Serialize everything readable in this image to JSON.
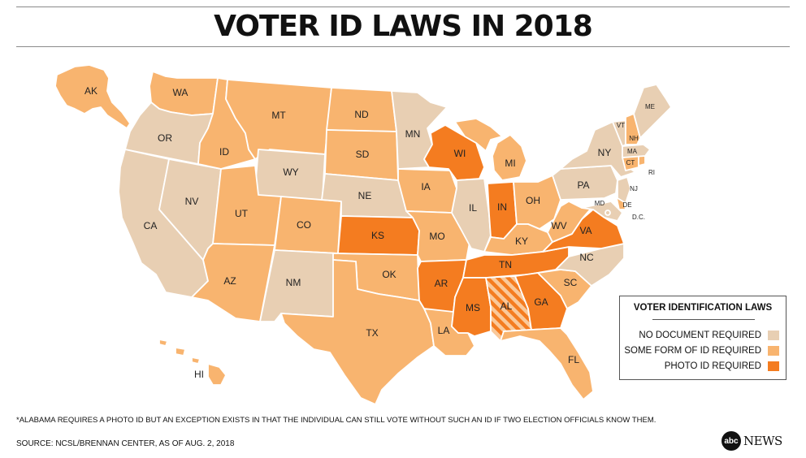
{
  "title": "VOTER ID LAWS IN 2018",
  "colors": {
    "none": "#e8cfb3",
    "some": "#f8b46f",
    "photo": "#f47c20",
    "stripe_base": "#fac99a"
  },
  "categories": {
    "none": "NO DOCUMENT REQUIRED",
    "some": "SOME FORM OF ID REQUIRED",
    "photo": "PHOTO ID REQUIRED"
  },
  "legend": {
    "title": "VOTER IDENTIFICATION LAWS",
    "items": [
      {
        "label": "NO DOCUMENT REQUIRED",
        "category": "none"
      },
      {
        "label": "SOME FORM OF ID REQUIRED",
        "category": "some"
      },
      {
        "label": "PHOTO ID REQUIRED",
        "category": "photo"
      }
    ]
  },
  "states": [
    {
      "abbr": "AK",
      "category": "some"
    },
    {
      "abbr": "HI",
      "category": "some"
    },
    {
      "abbr": "WA",
      "category": "some"
    },
    {
      "abbr": "OR",
      "category": "none"
    },
    {
      "abbr": "CA",
      "category": "none"
    },
    {
      "abbr": "NV",
      "category": "none"
    },
    {
      "abbr": "ID",
      "category": "some"
    },
    {
      "abbr": "MT",
      "category": "some"
    },
    {
      "abbr": "WY",
      "category": "none"
    },
    {
      "abbr": "UT",
      "category": "some"
    },
    {
      "abbr": "AZ",
      "category": "some"
    },
    {
      "abbr": "CO",
      "category": "some"
    },
    {
      "abbr": "NM",
      "category": "none"
    },
    {
      "abbr": "ND",
      "category": "some"
    },
    {
      "abbr": "SD",
      "category": "some"
    },
    {
      "abbr": "NE",
      "category": "none"
    },
    {
      "abbr": "KS",
      "category": "photo"
    },
    {
      "abbr": "OK",
      "category": "some"
    },
    {
      "abbr": "TX",
      "category": "some"
    },
    {
      "abbr": "MN",
      "category": "none"
    },
    {
      "abbr": "IA",
      "category": "some"
    },
    {
      "abbr": "MO",
      "category": "some"
    },
    {
      "abbr": "AR",
      "category": "photo"
    },
    {
      "abbr": "LA",
      "category": "some"
    },
    {
      "abbr": "WI",
      "category": "photo"
    },
    {
      "abbr": "IL",
      "category": "none"
    },
    {
      "abbr": "MI",
      "category": "some"
    },
    {
      "abbr": "IN",
      "category": "photo"
    },
    {
      "abbr": "OH",
      "category": "some"
    },
    {
      "abbr": "KY",
      "category": "some"
    },
    {
      "abbr": "TN",
      "category": "photo"
    },
    {
      "abbr": "MS",
      "category": "photo"
    },
    {
      "abbr": "AL",
      "category": "photo",
      "note": "*"
    },
    {
      "abbr": "GA",
      "category": "photo"
    },
    {
      "abbr": "FL",
      "category": "some"
    },
    {
      "abbr": "SC",
      "category": "some"
    },
    {
      "abbr": "NC",
      "category": "none"
    },
    {
      "abbr": "VA",
      "category": "photo"
    },
    {
      "abbr": "WV",
      "category": "some"
    },
    {
      "abbr": "PA",
      "category": "none"
    },
    {
      "abbr": "NY",
      "category": "none"
    },
    {
      "abbr": "VT",
      "category": "none"
    },
    {
      "abbr": "NH",
      "category": "some"
    },
    {
      "abbr": "ME",
      "category": "none"
    },
    {
      "abbr": "MA",
      "category": "none"
    },
    {
      "abbr": "CT",
      "category": "some"
    },
    {
      "abbr": "RI",
      "category": "some"
    },
    {
      "abbr": "NJ",
      "category": "none"
    },
    {
      "abbr": "DE",
      "category": "some"
    },
    {
      "abbr": "MD",
      "category": "none"
    },
    {
      "abbr": "D.C.",
      "category": "none"
    }
  ],
  "footnote": "*ALABAMA REQUIRES A PHOTO ID BUT AN EXCEPTION EXISTS IN THAT THE INDIVIDUAL CAN STILL VOTE WITHOUT SUCH AN ID IF TWO ELECTION OFFICIALS KNOW THEM.",
  "source": "SOURCE: NCSL/BRENNAN CENTER, AS OF AUG. 2, 2018",
  "logo": {
    "mark": "abc",
    "word": "NEWS"
  }
}
